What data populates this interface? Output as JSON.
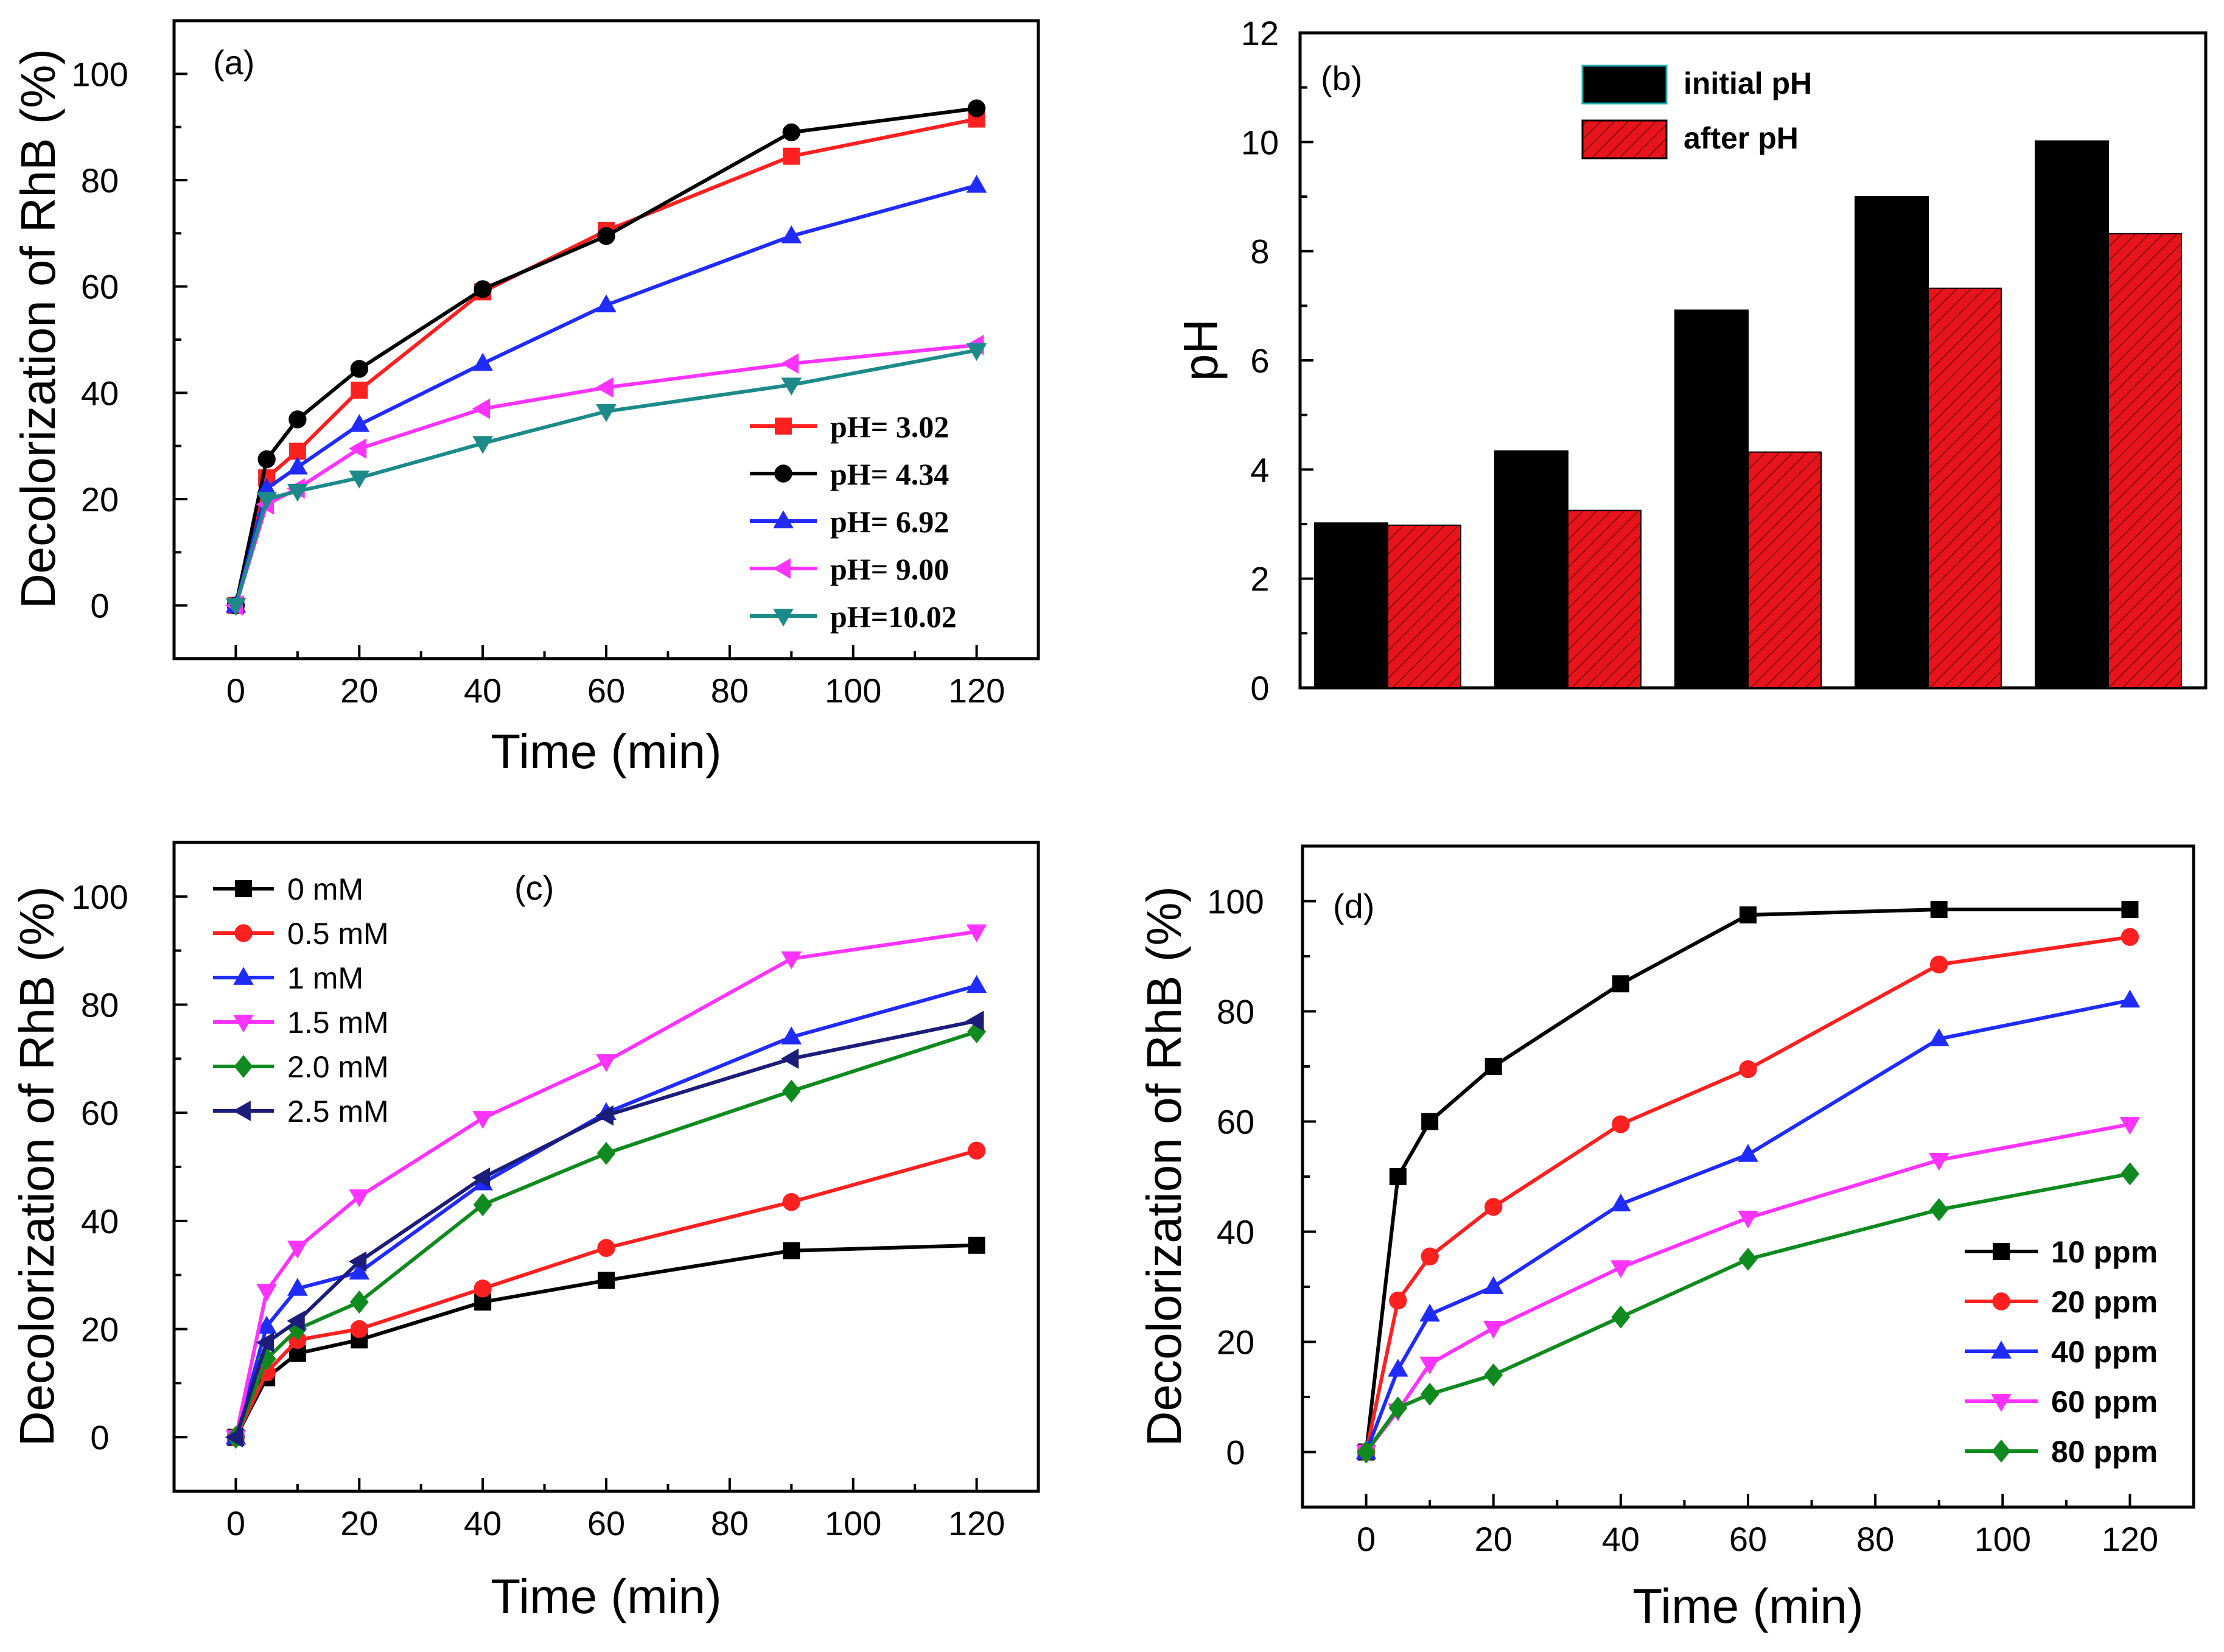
{
  "chart_data": [
    {
      "id": "a",
      "panel_label": "(a)",
      "type": "line",
      "xlabel": "Time (min)",
      "ylabel": "Decolorization of RhB (%)",
      "xlim": [
        -10,
        130
      ],
      "ylim": [
        -10,
        110
      ],
      "xticks": [
        0,
        20,
        40,
        60,
        80,
        100,
        120
      ],
      "yticks": [
        0,
        20,
        40,
        60,
        80,
        100
      ],
      "legend_position": "bottom-right",
      "legend_style": "serif-bold",
      "x": [
        0,
        5,
        10,
        20,
        40,
        60,
        90,
        120
      ],
      "series": [
        {
          "name": "pH= 3.02",
          "color": "#ff2020",
          "marker": "square",
          "values": [
            0,
            24,
            29,
            40.5,
            59,
            70.5,
            84.5,
            91.5
          ]
        },
        {
          "name": "pH= 4.34",
          "color": "#000000",
          "marker": "circle",
          "values": [
            0,
            27.5,
            35,
            44.5,
            59.5,
            69.5,
            89,
            93.5
          ]
        },
        {
          "name": "pH= 6.92",
          "color": "#1f2bff",
          "marker": "triangle-up",
          "values": [
            0,
            22,
            26,
            34,
            45.5,
            56.5,
            69.5,
            79
          ]
        },
        {
          "name": "pH= 9.00",
          "color": "#ff33ff",
          "marker": "triangle-left",
          "values": [
            0,
            19,
            22,
            29.5,
            37,
            41,
            45.5,
            49
          ]
        },
        {
          "name": "pH=10.02",
          "color": "#1d8a8a",
          "marker": "triangle-down",
          "values": [
            0,
            20,
            21.5,
            24,
            30.5,
            36.5,
            41.5,
            48
          ]
        }
      ]
    },
    {
      "id": "b",
      "panel_label": "(b)",
      "type": "bar",
      "xlabel": "",
      "ylabel": "pH",
      "ylim": [
        0,
        12
      ],
      "yticks": [
        0,
        2,
        4,
        6,
        8,
        10,
        12
      ],
      "categories": [
        "",
        "",
        "",
        "",
        ""
      ],
      "legend_position": "top-center",
      "series": [
        {
          "name": "initial pH",
          "color": "#000000",
          "pattern": "solid",
          "values": [
            3.02,
            4.34,
            6.92,
            9.0,
            10.02
          ]
        },
        {
          "name": "after pH",
          "color": "#e8141c",
          "pattern": "hatched",
          "values": [
            2.98,
            3.25,
            4.32,
            7.32,
            8.32
          ]
        }
      ]
    },
    {
      "id": "c",
      "panel_label": "(c)",
      "type": "line",
      "xlabel": "Time (min)",
      "ylabel": "Decolorization of RhB (%)",
      "xlim": [
        -10,
        130
      ],
      "ylim": [
        -10,
        110
      ],
      "xticks": [
        0,
        20,
        40,
        60,
        80,
        100,
        120
      ],
      "yticks": [
        0,
        20,
        40,
        60,
        80,
        100
      ],
      "legend_position": "top-left",
      "legend_style": "sans",
      "x": [
        0,
        5,
        10,
        20,
        40,
        60,
        90,
        120
      ],
      "series": [
        {
          "name": "0 mM",
          "color": "#000000",
          "marker": "square",
          "values": [
            0,
            11,
            15.5,
            18,
            25,
            29,
            34.5,
            35.5
          ]
        },
        {
          "name": "0.5 mM",
          "color": "#ff2020",
          "marker": "circle",
          "values": [
            0,
            12,
            18,
            20,
            27.5,
            35,
            43.5,
            53
          ]
        },
        {
          "name": "1 mM",
          "color": "#1f2bff",
          "marker": "triangle-up",
          "values": [
            0,
            20.5,
            27.5,
            30.5,
            47,
            60,
            74,
            83.5
          ]
        },
        {
          "name": "1.5 mM",
          "color": "#ff33ff",
          "marker": "triangle-down",
          "values": [
            0,
            27,
            35,
            44.5,
            59,
            69.5,
            88.5,
            93.5
          ]
        },
        {
          "name": "2.0 mM",
          "color": "#0f8a1e",
          "marker": "diamond",
          "values": [
            0,
            14.5,
            20,
            25,
            43,
            52.5,
            64,
            75
          ]
        },
        {
          "name": "2.5 mM",
          "color": "#1c1c7a",
          "marker": "triangle-left",
          "values": [
            0,
            17.5,
            21.5,
            32.5,
            48,
            59.5,
            70,
            77
          ]
        }
      ]
    },
    {
      "id": "d",
      "panel_label": "(d)",
      "type": "line",
      "xlabel": "Time (min)",
      "ylabel": "Decolorization of RhB (%)",
      "xlim": [
        -10,
        130
      ],
      "ylim": [
        -10,
        110
      ],
      "xticks": [
        0,
        20,
        40,
        60,
        80,
        100,
        120
      ],
      "yticks": [
        0,
        20,
        40,
        60,
        80,
        100
      ],
      "legend_position": "bottom-right",
      "legend_style": "sans-bold",
      "x": [
        0,
        5,
        10,
        20,
        40,
        60,
        90,
        120
      ],
      "series": [
        {
          "name": "10 ppm",
          "color": "#000000",
          "marker": "square",
          "values": [
            0,
            50,
            60,
            70,
            85,
            97.5,
            98.5,
            98.5
          ]
        },
        {
          "name": "20 ppm",
          "color": "#ff2020",
          "marker": "circle",
          "values": [
            0,
            27.5,
            35.5,
            44.5,
            59.5,
            69.5,
            88.5,
            93.5
          ]
        },
        {
          "name": "40 ppm",
          "color": "#1f2bff",
          "marker": "triangle-up",
          "values": [
            0,
            15,
            25,
            30,
            45,
            54,
            75,
            82
          ]
        },
        {
          "name": "60 ppm",
          "color": "#ff33ff",
          "marker": "triangle-down",
          "values": [
            0,
            7.5,
            16,
            22.5,
            33.5,
            42.5,
            53,
            59.5
          ]
        },
        {
          "name": "80 ppm",
          "color": "#0f8a1e",
          "marker": "diamond",
          "values": [
            0,
            8,
            10.5,
            14,
            24.5,
            35,
            44,
            50.5
          ]
        }
      ]
    }
  ]
}
